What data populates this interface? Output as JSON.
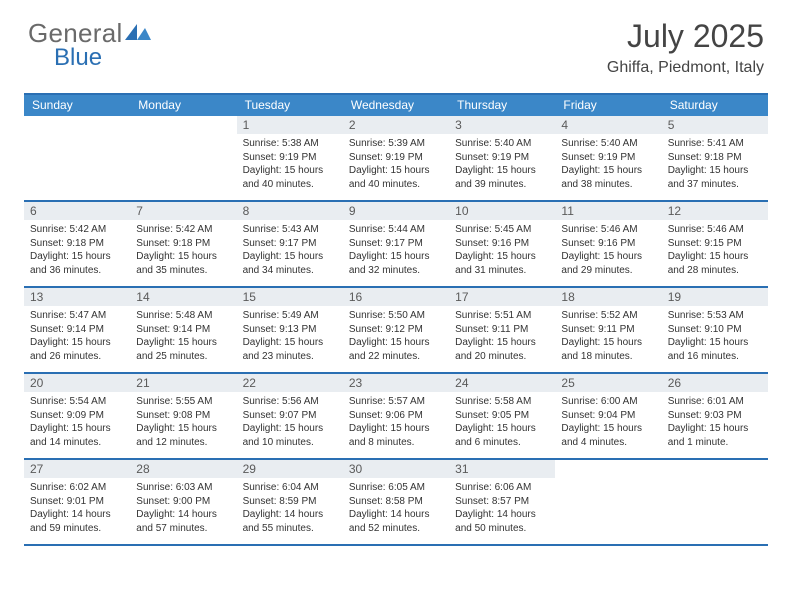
{
  "logo": {
    "text_a": "General",
    "text_b": "Blue"
  },
  "title": {
    "month": "July 2025",
    "location": "Ghiffa, Piedmont, Italy"
  },
  "colors": {
    "header_bar": "#3b87c8",
    "rule": "#2a6fb3",
    "daynum_bg": "#e9edf1",
    "text": "#2a2a2a"
  },
  "day_names": [
    "Sunday",
    "Monday",
    "Tuesday",
    "Wednesday",
    "Thursday",
    "Friday",
    "Saturday"
  ],
  "weeks": [
    [
      {
        "empty": true
      },
      {
        "empty": true
      },
      {
        "n": "1",
        "sunrise": "Sunrise: 5:38 AM",
        "sunset": "Sunset: 9:19 PM",
        "day": "Daylight: 15 hours and 40 minutes."
      },
      {
        "n": "2",
        "sunrise": "Sunrise: 5:39 AM",
        "sunset": "Sunset: 9:19 PM",
        "day": "Daylight: 15 hours and 40 minutes."
      },
      {
        "n": "3",
        "sunrise": "Sunrise: 5:40 AM",
        "sunset": "Sunset: 9:19 PM",
        "day": "Daylight: 15 hours and 39 minutes."
      },
      {
        "n": "4",
        "sunrise": "Sunrise: 5:40 AM",
        "sunset": "Sunset: 9:19 PM",
        "day": "Daylight: 15 hours and 38 minutes."
      },
      {
        "n": "5",
        "sunrise": "Sunrise: 5:41 AM",
        "sunset": "Sunset: 9:18 PM",
        "day": "Daylight: 15 hours and 37 minutes."
      }
    ],
    [
      {
        "n": "6",
        "sunrise": "Sunrise: 5:42 AM",
        "sunset": "Sunset: 9:18 PM",
        "day": "Daylight: 15 hours and 36 minutes."
      },
      {
        "n": "7",
        "sunrise": "Sunrise: 5:42 AM",
        "sunset": "Sunset: 9:18 PM",
        "day": "Daylight: 15 hours and 35 minutes."
      },
      {
        "n": "8",
        "sunrise": "Sunrise: 5:43 AM",
        "sunset": "Sunset: 9:17 PM",
        "day": "Daylight: 15 hours and 34 minutes."
      },
      {
        "n": "9",
        "sunrise": "Sunrise: 5:44 AM",
        "sunset": "Sunset: 9:17 PM",
        "day": "Daylight: 15 hours and 32 minutes."
      },
      {
        "n": "10",
        "sunrise": "Sunrise: 5:45 AM",
        "sunset": "Sunset: 9:16 PM",
        "day": "Daylight: 15 hours and 31 minutes."
      },
      {
        "n": "11",
        "sunrise": "Sunrise: 5:46 AM",
        "sunset": "Sunset: 9:16 PM",
        "day": "Daylight: 15 hours and 29 minutes."
      },
      {
        "n": "12",
        "sunrise": "Sunrise: 5:46 AM",
        "sunset": "Sunset: 9:15 PM",
        "day": "Daylight: 15 hours and 28 minutes."
      }
    ],
    [
      {
        "n": "13",
        "sunrise": "Sunrise: 5:47 AM",
        "sunset": "Sunset: 9:14 PM",
        "day": "Daylight: 15 hours and 26 minutes."
      },
      {
        "n": "14",
        "sunrise": "Sunrise: 5:48 AM",
        "sunset": "Sunset: 9:14 PM",
        "day": "Daylight: 15 hours and 25 minutes."
      },
      {
        "n": "15",
        "sunrise": "Sunrise: 5:49 AM",
        "sunset": "Sunset: 9:13 PM",
        "day": "Daylight: 15 hours and 23 minutes."
      },
      {
        "n": "16",
        "sunrise": "Sunrise: 5:50 AM",
        "sunset": "Sunset: 9:12 PM",
        "day": "Daylight: 15 hours and 22 minutes."
      },
      {
        "n": "17",
        "sunrise": "Sunrise: 5:51 AM",
        "sunset": "Sunset: 9:11 PM",
        "day": "Daylight: 15 hours and 20 minutes."
      },
      {
        "n": "18",
        "sunrise": "Sunrise: 5:52 AM",
        "sunset": "Sunset: 9:11 PM",
        "day": "Daylight: 15 hours and 18 minutes."
      },
      {
        "n": "19",
        "sunrise": "Sunrise: 5:53 AM",
        "sunset": "Sunset: 9:10 PM",
        "day": "Daylight: 15 hours and 16 minutes."
      }
    ],
    [
      {
        "n": "20",
        "sunrise": "Sunrise: 5:54 AM",
        "sunset": "Sunset: 9:09 PM",
        "day": "Daylight: 15 hours and 14 minutes."
      },
      {
        "n": "21",
        "sunrise": "Sunrise: 5:55 AM",
        "sunset": "Sunset: 9:08 PM",
        "day": "Daylight: 15 hours and 12 minutes."
      },
      {
        "n": "22",
        "sunrise": "Sunrise: 5:56 AM",
        "sunset": "Sunset: 9:07 PM",
        "day": "Daylight: 15 hours and 10 minutes."
      },
      {
        "n": "23",
        "sunrise": "Sunrise: 5:57 AM",
        "sunset": "Sunset: 9:06 PM",
        "day": "Daylight: 15 hours and 8 minutes."
      },
      {
        "n": "24",
        "sunrise": "Sunrise: 5:58 AM",
        "sunset": "Sunset: 9:05 PM",
        "day": "Daylight: 15 hours and 6 minutes."
      },
      {
        "n": "25",
        "sunrise": "Sunrise: 6:00 AM",
        "sunset": "Sunset: 9:04 PM",
        "day": "Daylight: 15 hours and 4 minutes."
      },
      {
        "n": "26",
        "sunrise": "Sunrise: 6:01 AM",
        "sunset": "Sunset: 9:03 PM",
        "day": "Daylight: 15 hours and 1 minute."
      }
    ],
    [
      {
        "n": "27",
        "sunrise": "Sunrise: 6:02 AM",
        "sunset": "Sunset: 9:01 PM",
        "day": "Daylight: 14 hours and 59 minutes."
      },
      {
        "n": "28",
        "sunrise": "Sunrise: 6:03 AM",
        "sunset": "Sunset: 9:00 PM",
        "day": "Daylight: 14 hours and 57 minutes."
      },
      {
        "n": "29",
        "sunrise": "Sunrise: 6:04 AM",
        "sunset": "Sunset: 8:59 PM",
        "day": "Daylight: 14 hours and 55 minutes."
      },
      {
        "n": "30",
        "sunrise": "Sunrise: 6:05 AM",
        "sunset": "Sunset: 8:58 PM",
        "day": "Daylight: 14 hours and 52 minutes."
      },
      {
        "n": "31",
        "sunrise": "Sunrise: 6:06 AM",
        "sunset": "Sunset: 8:57 PM",
        "day": "Daylight: 14 hours and 50 minutes."
      },
      {
        "empty": true
      },
      {
        "empty": true
      }
    ]
  ]
}
